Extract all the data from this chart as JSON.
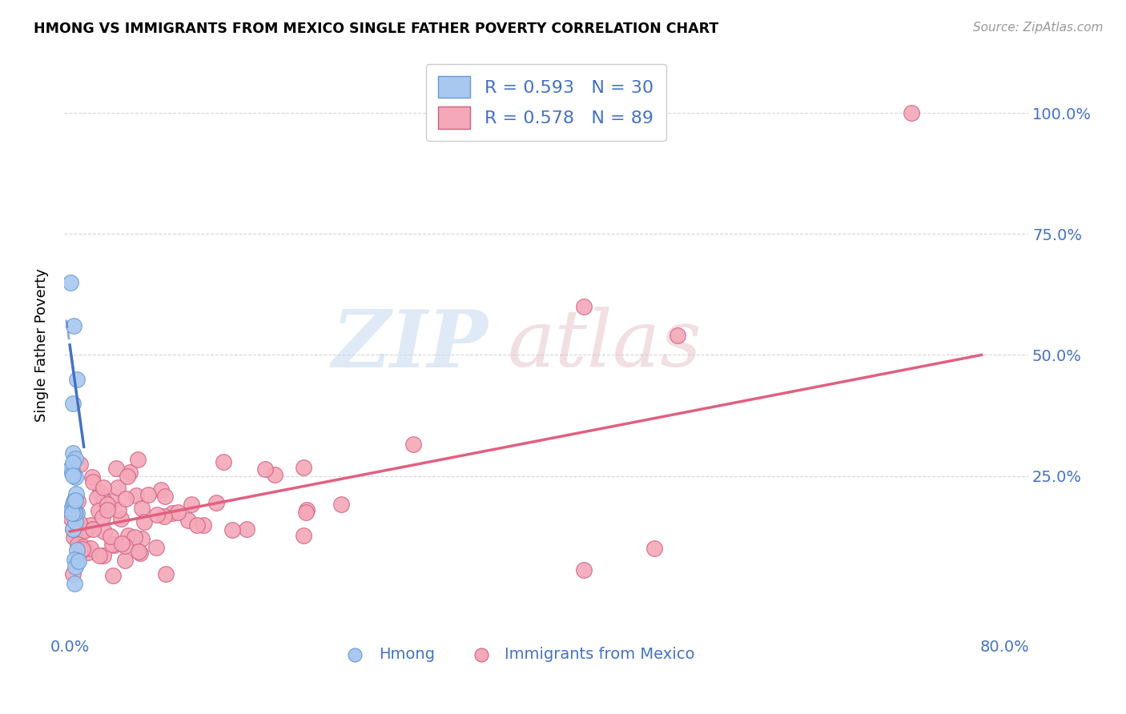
{
  "title": "HMONG VS IMMIGRANTS FROM MEXICO SINGLE FATHER POVERTY CORRELATION CHART",
  "source": "Source: ZipAtlas.com",
  "xlabel_label": "Hmong",
  "xlabel_label2": "Immigrants from Mexico",
  "ylabel": "Single Father Poverty",
  "y_ticks": [
    0.25,
    0.5,
    0.75,
    1.0
  ],
  "y_tick_labels": [
    "25.0%",
    "50.0%",
    "75.0%",
    "100.0%"
  ],
  "x_ticks": [
    0.0,
    0.2,
    0.4,
    0.6,
    0.8
  ],
  "x_tick_labels": [
    "0.0%",
    "",
    "",
    "",
    "80.0%"
  ],
  "hmong_color": "#a8c8f0",
  "hmong_edge_color": "#6899d0",
  "mexico_color": "#f4a8b8",
  "mexico_edge_color": "#d06080",
  "hmong_line_color": "#4472c4",
  "mexico_line_color": "#e06080",
  "hmong_R": 0.593,
  "hmong_N": 30,
  "mexico_R": 0.578,
  "mexico_N": 89,
  "background_color": "#ffffff",
  "grid_color": "#cccccc",
  "axis_color": "#4472c4",
  "legend_text_color": "#4472c4",
  "title_color": "#000000",
  "source_color": "#999999",
  "watermark_zip_color": "#c8d8f0",
  "watermark_atlas_color": "#e0b8c0",
  "xlim": [
    -0.005,
    0.82
  ],
  "ylim": [
    -0.08,
    1.12
  ],
  "hmong_line_x0": 0.0,
  "hmong_line_y0": 0.5,
  "hmong_line_x1": 0.005,
  "hmong_line_y1": 0.4,
  "mexico_line_x0": 0.0,
  "mexico_line_y0": 0.135,
  "mexico_line_x1": 0.78,
  "mexico_line_y1": 0.5
}
